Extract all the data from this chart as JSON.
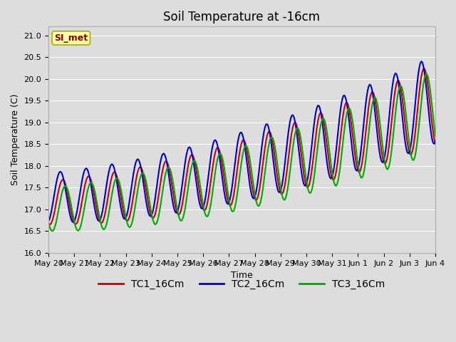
{
  "title": "Soil Temperature at -16cm",
  "xlabel": "Time",
  "ylabel": "Soil Temperature (C)",
  "ylim": [
    16.0,
    21.2
  ],
  "yticks": [
    16.0,
    16.5,
    17.0,
    17.5,
    18.0,
    18.5,
    19.0,
    19.5,
    20.0,
    20.5,
    21.0
  ],
  "x_labels": [
    "May 20",
    "May 21",
    "May 22",
    "May 23",
    "May 24",
    "May 25",
    "May 26",
    "May 27",
    "May 28",
    "May 29",
    "May 30",
    "May 31",
    "Jun 1",
    "Jun 2",
    "Jun 3",
    "Jun 4"
  ],
  "annotation_text": "SI_met",
  "annotation_bg": "#ffffaa",
  "annotation_border": "#aaaa00",
  "annotation_fg": "#880000",
  "bg_color": "#dddddd",
  "plot_bg": "#dddddd",
  "grid_color": "#ffffff",
  "line_colors": [
    "#cc0000",
    "#0000cc",
    "#00aa00"
  ],
  "line_labels": [
    "TC1_16Cm",
    "TC2_16Cm",
    "TC3_16Cm"
  ],
  "linewidth": 1.5,
  "title_fontsize": 12,
  "axis_fontsize": 9,
  "tick_fontsize": 8,
  "legend_fontsize": 10
}
